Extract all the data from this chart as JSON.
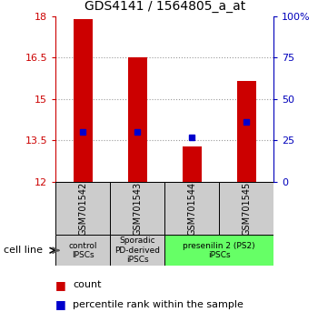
{
  "title": "GDS4141 / 1564805_a_at",
  "samples": [
    "GSM701542",
    "GSM701543",
    "GSM701544",
    "GSM701545"
  ],
  "bar_bottoms": [
    12.0,
    12.0,
    12.0,
    12.0
  ],
  "bar_tops": [
    17.9,
    16.5,
    13.3,
    15.65
  ],
  "percentile_ranks": [
    30,
    30,
    27,
    36
  ],
  "ylim_left": [
    12,
    18
  ],
  "ylim_right": [
    0,
    100
  ],
  "yticks_left": [
    12,
    13.5,
    15,
    16.5,
    18
  ],
  "yticks_right": [
    0,
    25,
    50,
    75,
    100
  ],
  "ytick_labels_left": [
    "12",
    "13.5",
    "15",
    "16.5",
    "18"
  ],
  "ytick_labels_right": [
    "0",
    "25",
    "50",
    "75",
    "100%"
  ],
  "bar_color": "#cc0000",
  "percentile_color": "#0000cc",
  "group_colors": [
    "#cccccc",
    "#cccccc",
    "#66ff66"
  ],
  "sample_bg_color": "#cccccc",
  "grid_color": "#888888",
  "left_axis_color": "#cc0000",
  "right_axis_color": "#0000bb",
  "bar_width": 0.35
}
